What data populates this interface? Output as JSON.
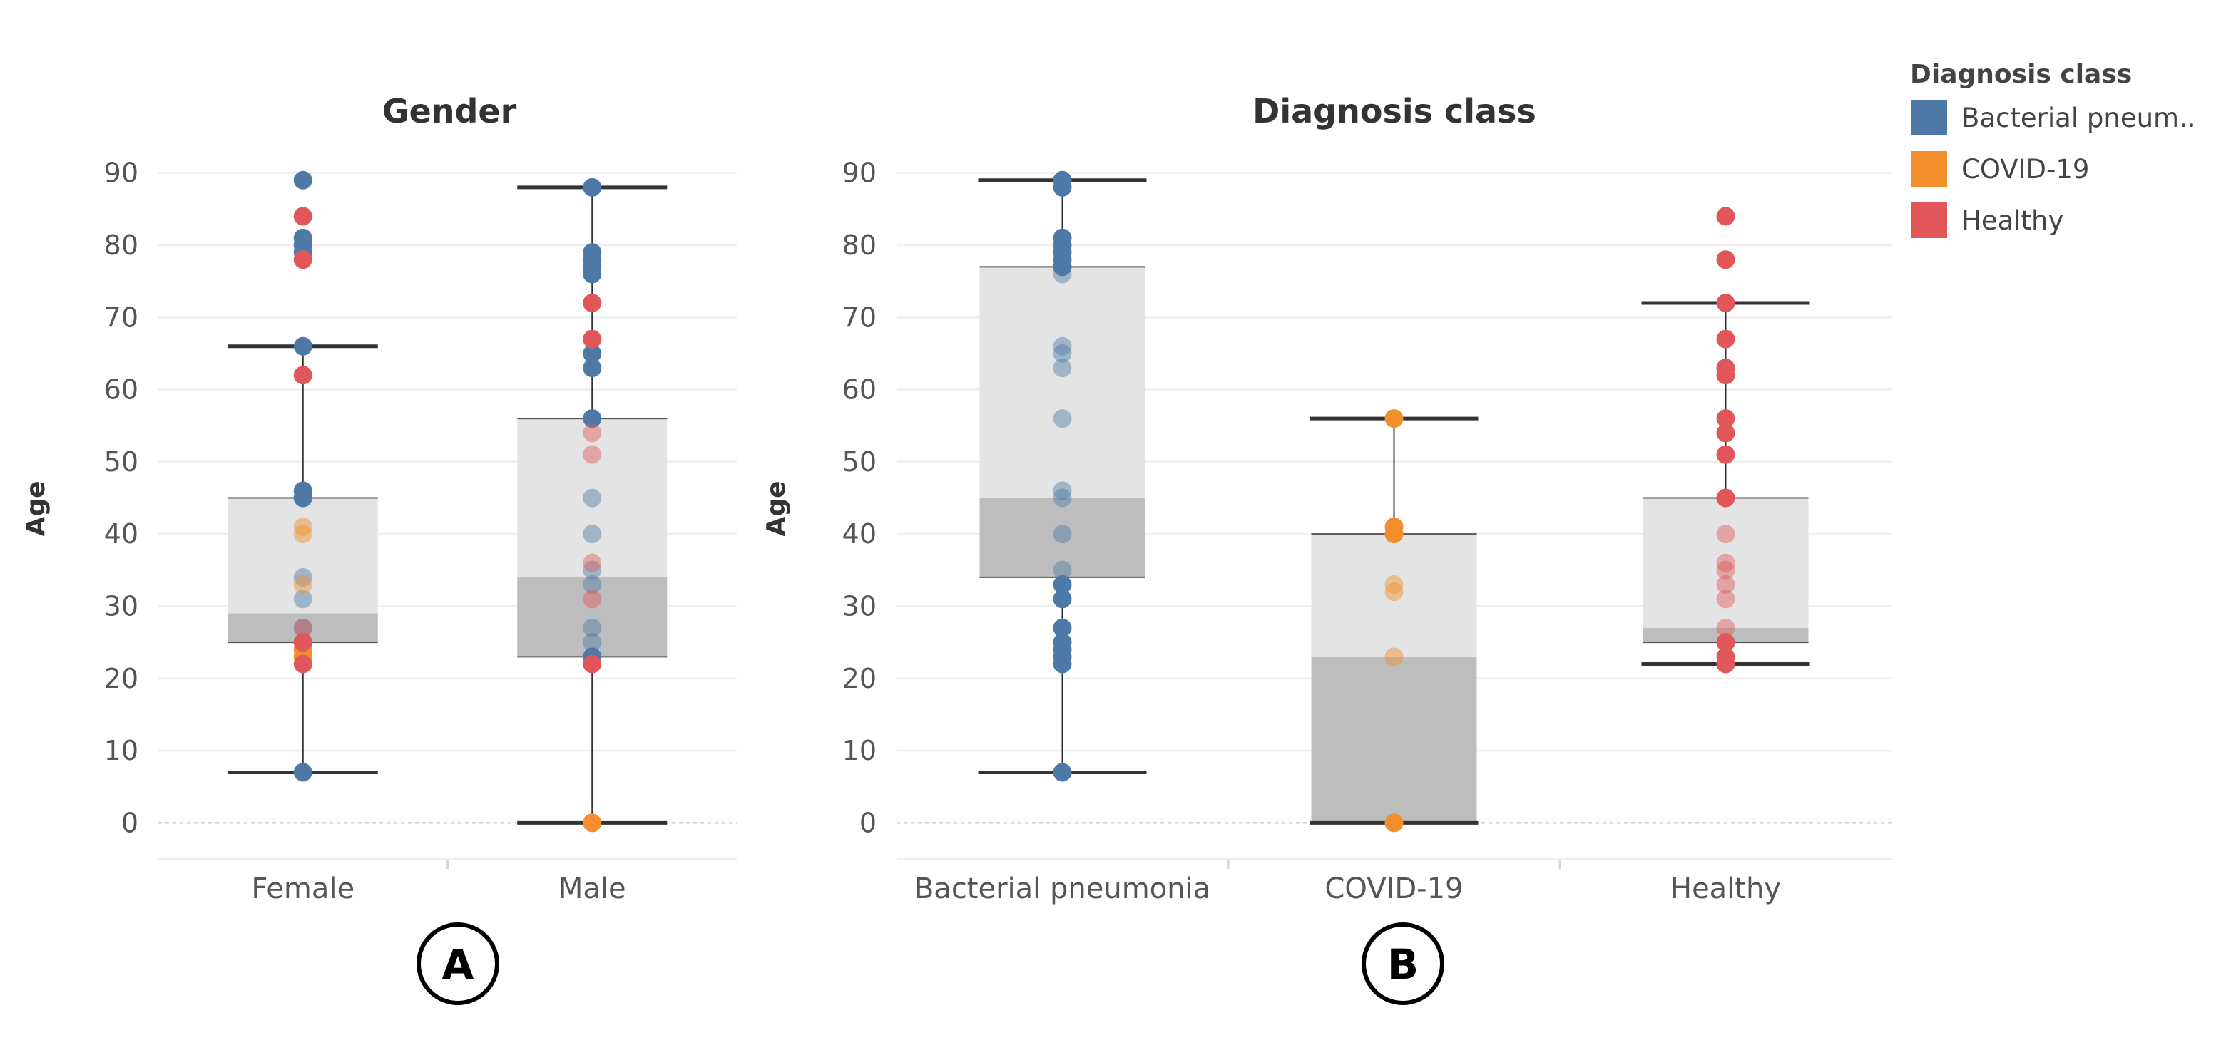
{
  "chart_data": [
    {
      "type": "box",
      "panel_label": "A",
      "title": "Gender",
      "xlabel": "",
      "ylabel": "Age",
      "ylim": [
        -5,
        95
      ],
      "yticks": [
        0,
        10,
        20,
        30,
        40,
        50,
        60,
        70,
        80,
        90
      ],
      "categories": [
        "Female",
        "Male"
      ],
      "boxes": [
        {
          "category": "Female",
          "whisker_low": 7,
          "q1": 25,
          "median": 29,
          "q3": 45,
          "whisker_high": 66
        },
        {
          "category": "Male",
          "whisker_low": 0,
          "q1": 23,
          "median": 34,
          "q3": 56,
          "whisker_high": 88
        }
      ],
      "points": [
        {
          "category": "Female",
          "values": {
            "Bacterial pneumonia": [
              89,
              81,
              80,
              79,
              66,
              46,
              45,
              34,
              31,
              27,
              25,
              7
            ],
            "COVID-19": [
              41,
              40,
              33,
              24,
              23
            ],
            "Healthy": [
              84,
              78,
              62,
              27,
              25,
              22
            ]
          }
        },
        {
          "category": "Male",
          "values": {
            "Bacterial pneumonia": [
              88,
              79,
              78,
              77,
              76,
              65,
              63,
              56,
              45,
              40,
              35,
              33,
              27,
              25,
              23
            ],
            "COVID-19": [
              0
            ],
            "Healthy": [
              72,
              67,
              54,
              51,
              36,
              31,
              22
            ]
          }
        }
      ]
    },
    {
      "type": "box",
      "panel_label": "B",
      "title": "Diagnosis class",
      "xlabel": "",
      "ylabel": "Age",
      "ylim": [
        -5,
        95
      ],
      "yticks": [
        0,
        10,
        20,
        30,
        40,
        50,
        60,
        70,
        80,
        90
      ],
      "categories": [
        "Bacterial pneumonia",
        "COVID-19",
        "Healthy"
      ],
      "boxes": [
        {
          "category": "Bacterial pneumonia",
          "whisker_low": 7,
          "q1": 34,
          "median": 45,
          "q3": 77,
          "whisker_high": 89
        },
        {
          "category": "COVID-19",
          "whisker_low": 0,
          "q1": 0,
          "median": 23,
          "q3": 40,
          "whisker_high": 56
        },
        {
          "category": "Healthy",
          "whisker_low": 22,
          "q1": 25,
          "median": 27,
          "q3": 45,
          "whisker_high": 72
        }
      ],
      "points": [
        {
          "category": "Bacterial pneumonia",
          "values": {
            "Bacterial pneumonia": [
              89,
              88,
              81,
              80,
              79,
              78,
              77,
              76,
              66,
              65,
              63,
              56,
              46,
              45,
              40,
              35,
              33,
              31,
              27,
              25,
              24,
              23,
              22,
              7
            ]
          }
        },
        {
          "category": "COVID-19",
          "values": {
            "COVID-19": [
              56,
              41,
              40,
              33,
              32,
              23,
              0
            ]
          }
        },
        {
          "category": "Healthy",
          "values": {
            "Healthy": [
              84,
              78,
              72,
              67,
              63,
              62,
              56,
              54,
              51,
              45,
              40,
              36,
              35,
              33,
              31,
              27,
              25,
              23,
              22
            ]
          }
        }
      ]
    }
  ],
  "legend": {
    "title": "Diagnosis class",
    "position": "top-right",
    "items": [
      {
        "label": "Bacterial pneum..",
        "series": "Bacterial pneumonia",
        "color": "#4e79a7"
      },
      {
        "label": "COVID-19",
        "series": "COVID-19",
        "color": "#f28e2b"
      },
      {
        "label": "Healthy",
        "series": "Healthy",
        "color": "#e15759"
      }
    ]
  },
  "colors": {
    "box_upper": "#e4e4e4",
    "box_lower": "#bdbdbd",
    "grid": "#f0f0f0",
    "whisker": "#333333"
  }
}
